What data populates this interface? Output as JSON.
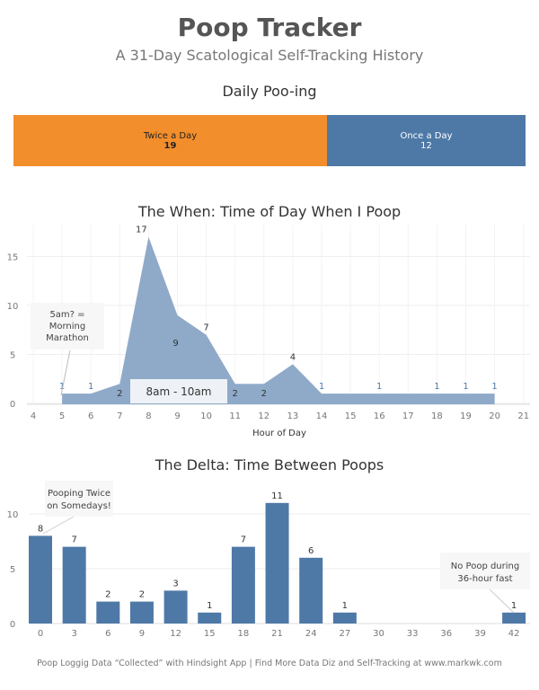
{
  "title": "Poop Tracker",
  "subtitle": "A 31-Day Scatological Self-Tracking History",
  "footer": "Poop Loggig Data “Collected” with Hindsight App | Find More Data Diz and Self-Tracking at www.markwk.com",
  "colors": {
    "twice": "#f28e2b",
    "once": "#4e79a7",
    "area": "#8faac8",
    "bar": "#4e79a7"
  },
  "chart_data": [
    {
      "type": "bar",
      "title": "Daily Poo-ing",
      "orientation": "stacked-horizontal",
      "categories": [
        "Twice a Day",
        "Once a Day"
      ],
      "values": [
        19,
        12
      ]
    },
    {
      "type": "area",
      "title": "The When: Time of Day When I Poop",
      "xlabel": "Hour of Day",
      "ylabel": "",
      "x": [
        5,
        6,
        7,
        8,
        9,
        10,
        11,
        12,
        13,
        14,
        16,
        18,
        19,
        20
      ],
      "y": [
        1,
        1,
        2,
        17,
        9,
        7,
        2,
        2,
        4,
        1,
        1,
        1,
        1,
        1
      ],
      "xlim": [
        4,
        21
      ],
      "ylim": [
        0,
        18
      ],
      "xticks": [
        4,
        5,
        6,
        7,
        8,
        9,
        10,
        11,
        12,
        13,
        14,
        15,
        16,
        17,
        18,
        19,
        20,
        21
      ],
      "yticks": [
        0,
        5,
        10,
        15
      ],
      "grid": true,
      "annotations": [
        {
          "text": "5am? = Morning Marathon",
          "at": 5
        },
        {
          "text": "8am - 10am",
          "at": "8-10"
        }
      ]
    },
    {
      "type": "bar",
      "title": "The Delta: Time Between Poops",
      "xlabel": "",
      "ylabel": "",
      "categories": [
        0,
        3,
        6,
        9,
        12,
        15,
        18,
        21,
        24,
        27,
        30,
        33,
        36,
        39,
        42
      ],
      "values": [
        8,
        7,
        2,
        2,
        3,
        1,
        7,
        11,
        6,
        1,
        0,
        0,
        0,
        0,
        1
      ],
      "yticks": [
        0,
        5,
        10
      ],
      "grid": true,
      "annotations": [
        {
          "text": "Pooping Twice on Somedays!",
          "at": 0
        },
        {
          "text": "No Poop during 36-hour fast",
          "at": 42
        }
      ]
    }
  ]
}
